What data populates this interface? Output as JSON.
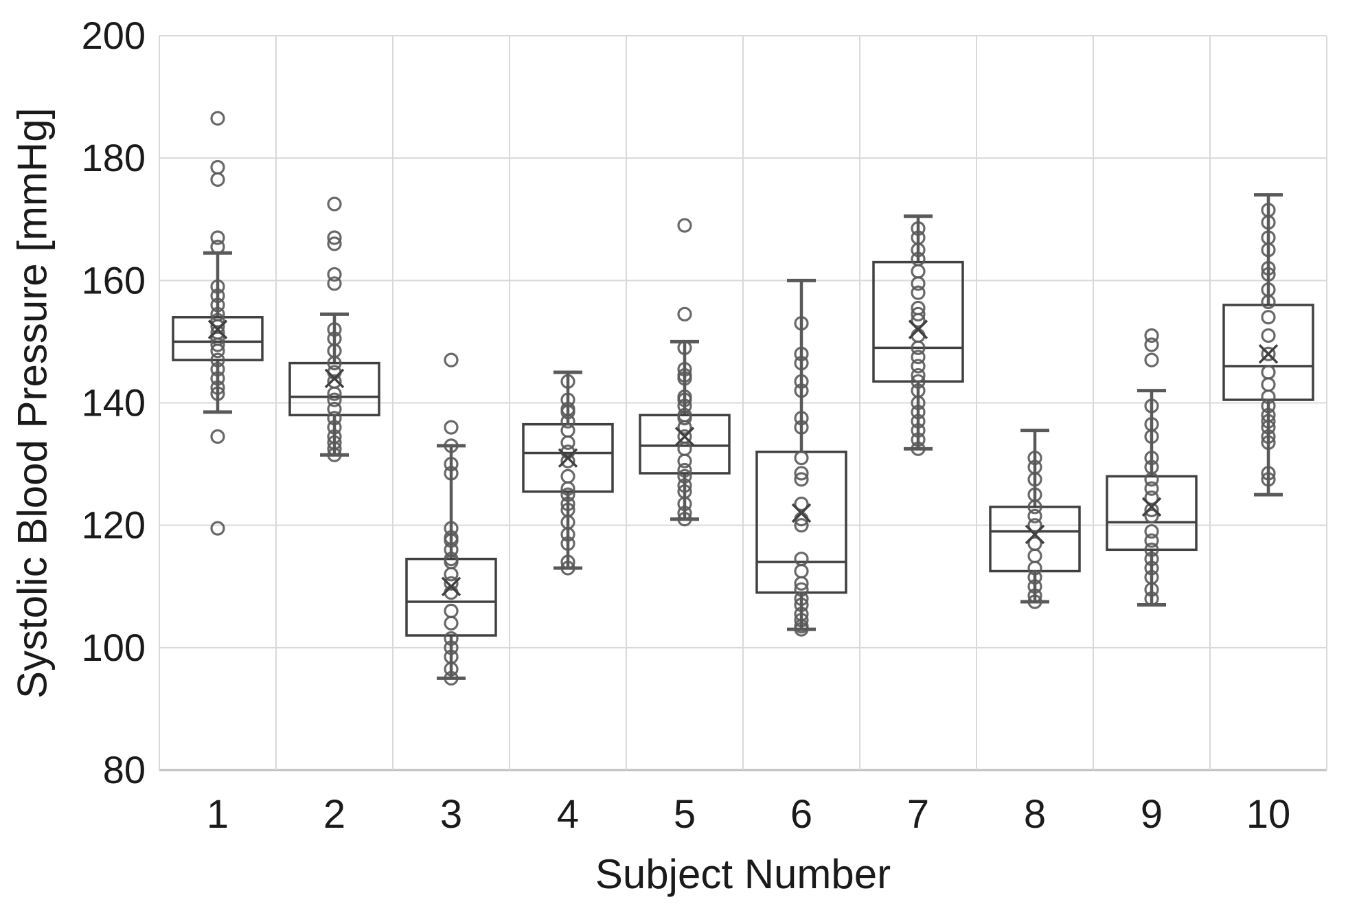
{
  "chart_data": {
    "type": "boxplot",
    "title": "",
    "xlabel": "Subject Number",
    "ylabel": "Systolic Blood Pressure [mmHg]",
    "ylim": [
      80,
      200
    ],
    "y_ticks": [
      80,
      100,
      120,
      140,
      160,
      180,
      200
    ],
    "grid": true,
    "marker_note": "hollow circle = individual measurement, X = mean, box = Q1/median/Q3, whisker caps = min/max fences",
    "categories": [
      "1",
      "2",
      "3",
      "4",
      "5",
      "6",
      "7",
      "8",
      "9",
      "10"
    ],
    "series": [
      {
        "subject": "1",
        "whisker_low": 138.5,
        "q1": 147,
        "median": 150,
        "q3": 154,
        "whisker_high": 164.5,
        "mean": 152,
        "points": [
          186.5,
          178.5,
          176.5,
          167,
          165.5,
          159,
          157.5,
          156,
          154.5,
          153.5,
          152.5,
          151.5,
          150.5,
          149.5,
          148.5,
          147,
          145.5,
          144,
          142.5,
          141.5,
          134.5,
          119.5
        ]
      },
      {
        "subject": "2",
        "whisker_low": 131.5,
        "q1": 138,
        "median": 141,
        "q3": 146.5,
        "whisker_high": 154.5,
        "mean": 144,
        "points": [
          172.5,
          167,
          166,
          161,
          159.5,
          152,
          150.5,
          148.5,
          146.5,
          145,
          143.5,
          141.5,
          140.5,
          139,
          137.5,
          136,
          134.5,
          133.5,
          132.5,
          131.5
        ]
      },
      {
        "subject": "3",
        "whisker_low": 95,
        "q1": 102,
        "median": 107.5,
        "q3": 114.5,
        "whisker_high": 133,
        "mean": 110,
        "points": [
          147,
          136,
          133,
          130,
          128.5,
          119.5,
          118,
          117.5,
          116,
          114.5,
          114,
          112,
          110.5,
          109,
          106,
          104,
          101.5,
          100,
          98.5,
          96.5,
          95
        ]
      },
      {
        "subject": "4",
        "whisker_low": 113,
        "q1": 125.5,
        "median": 131.8,
        "q3": 136.5,
        "whisker_high": 145,
        "mean": 131,
        "points": [
          143.5,
          140.5,
          139,
          138.5,
          137,
          135.5,
          133.5,
          132,
          130.5,
          128,
          126,
          125,
          123.5,
          122.5,
          120.5,
          118.5,
          117,
          114,
          113
        ]
      },
      {
        "subject": "5",
        "whisker_low": 121,
        "q1": 128.5,
        "median": 133,
        "q3": 138,
        "whisker_high": 150,
        "mean": 134.5,
        "points": [
          169,
          154.5,
          149,
          145.5,
          144.5,
          144,
          141,
          140.5,
          139.5,
          138,
          137.5,
          136,
          134.5,
          132.5,
          130.5,
          129,
          128,
          126.5,
          125.5,
          123.5,
          122,
          121
        ]
      },
      {
        "subject": "6",
        "whisker_low": 103,
        "q1": 109,
        "median": 114,
        "q3": 132,
        "whisker_high": 160,
        "mean": 122,
        "points": [
          153,
          148,
          146.5,
          143.5,
          142,
          137.5,
          136,
          131,
          128.5,
          127.5,
          123.5,
          121,
          120,
          114.5,
          112.5,
          110.5,
          109.5,
          108,
          107,
          105.5,
          104.5,
          103.5,
          103
        ]
      },
      {
        "subject": "7",
        "whisker_low": 132.5,
        "q1": 143.5,
        "median": 149,
        "q3": 163,
        "whisker_high": 170.5,
        "mean": 152,
        "points": [
          168.5,
          167,
          165,
          163.5,
          161.5,
          159.5,
          158,
          155.5,
          154.5,
          153.5,
          151,
          149,
          147.5,
          146,
          144.5,
          143.5,
          142,
          140,
          138.5,
          137,
          135.5,
          134,
          132.5
        ]
      },
      {
        "subject": "8",
        "whisker_low": 107.5,
        "q1": 112.5,
        "median": 119,
        "q3": 123,
        "whisker_high": 135.5,
        "mean": 118.5,
        "points": [
          131,
          129.5,
          127.5,
          125,
          123,
          121.5,
          120,
          117,
          115,
          113,
          111.5,
          110,
          108.5,
          107.5
        ]
      },
      {
        "subject": "9",
        "whisker_low": 107,
        "q1": 116,
        "median": 120.5,
        "q3": 128,
        "whisker_high": 142,
        "mean": 123,
        "points": [
          151,
          149.5,
          147,
          139.5,
          136.5,
          134.5,
          131,
          129.5,
          127.5,
          126,
          124.5,
          122.5,
          121.5,
          119,
          117.5,
          116,
          114.5,
          113,
          111.5,
          109.5,
          108
        ]
      },
      {
        "subject": "10",
        "whisker_low": 125,
        "q1": 140.5,
        "median": 146,
        "q3": 156,
        "whisker_high": 174,
        "mean": 148,
        "points": [
          171.5,
          169.5,
          167,
          165,
          162,
          161,
          158.5,
          156.5,
          154,
          151,
          148,
          145,
          143,
          141,
          139.5,
          138,
          137,
          136,
          134.5,
          133.5,
          128.5,
          127.5
        ]
      }
    ]
  },
  "colors": {
    "background": "#ffffff",
    "gridline": "#d9d9d9",
    "axis_line": "#bfbfbf",
    "box_stroke": "#404040",
    "whisker_stroke": "#595959",
    "point_stroke": "#595959",
    "mean_stroke": "#404040",
    "text": "#1a1a1a"
  }
}
